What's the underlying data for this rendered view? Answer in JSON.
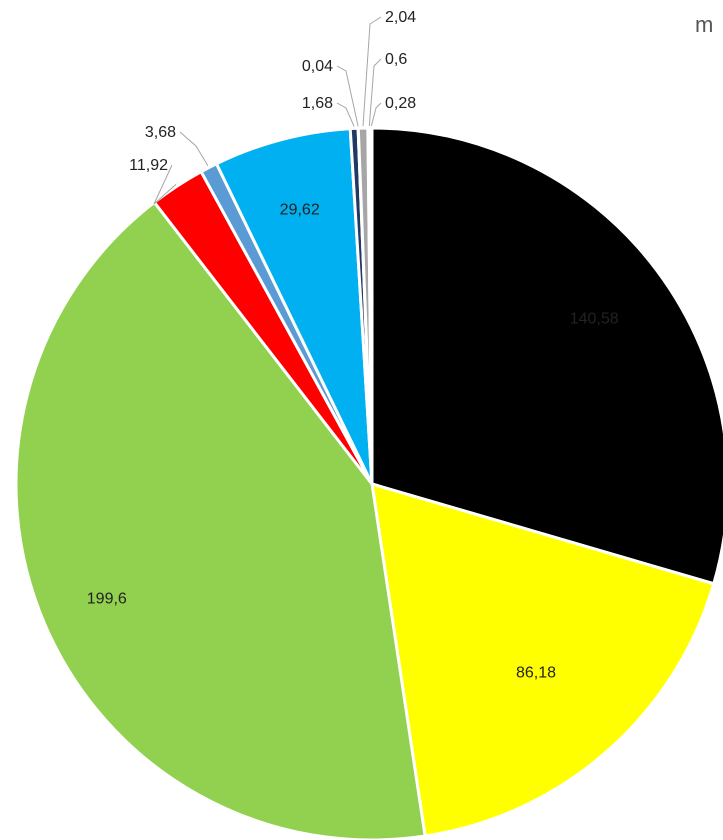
{
  "chart_title_visible": "m",
  "chart_data": {
    "type": "pie",
    "title": "m",
    "slices": [
      {
        "value": 140.58,
        "label": "140,58",
        "color": "#000000"
      },
      {
        "value": 86.18,
        "label": "86,18",
        "color": "#ffff00"
      },
      {
        "value": 199.6,
        "label": "199,6",
        "color": "#92d050"
      },
      {
        "value": 11.92,
        "label": "11,92",
        "color": "#ff0000"
      },
      {
        "value": 3.68,
        "label": "3,68",
        "color": "#5b9bd5"
      },
      {
        "value": 29.62,
        "label": "29,62",
        "color": "#00b0f0"
      },
      {
        "value": 1.68,
        "label": "1,68",
        "color": "#1f3864"
      },
      {
        "value": 0.04,
        "label": "0,04",
        "color": "#7f7f7f"
      },
      {
        "value": 2.04,
        "label": "2,04",
        "color": "#a6a6a6"
      },
      {
        "value": 0.6,
        "label": "0,6",
        "color": "#404040"
      },
      {
        "value": 0.28,
        "label": "0,28",
        "color": "#d9d9d9"
      }
    ]
  }
}
